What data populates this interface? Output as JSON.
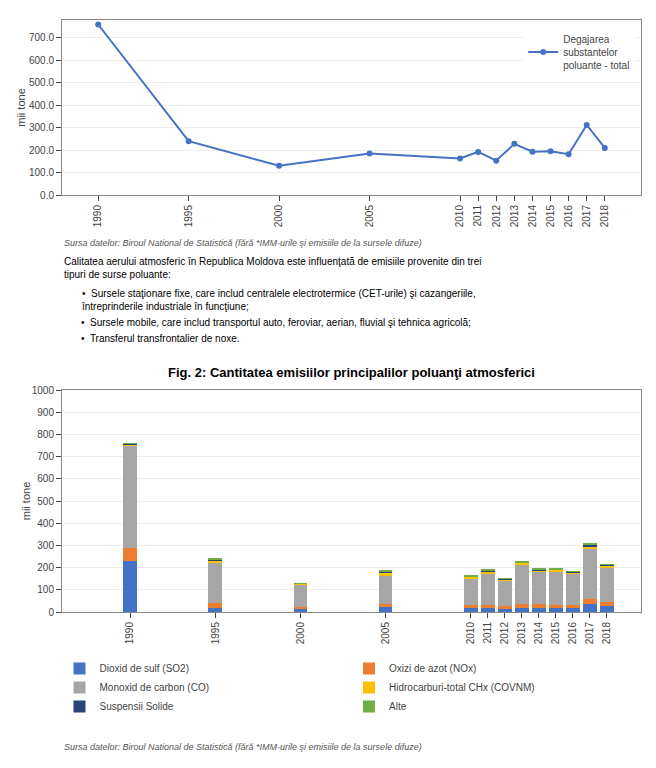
{
  "chart_data": [
    {
      "type": "line",
      "x": [
        1990,
        1995,
        2000,
        2005,
        2010,
        2011,
        2012,
        2013,
        2014,
        2015,
        2016,
        2017,
        2018
      ],
      "series": [
        {
          "name": "Degajarea\nsubstantelor\npoluante - total",
          "color": "#4472C4",
          "marker": "circle",
          "line_style": "solid",
          "values": [
            760,
            240,
            130,
            185,
            163,
            192,
            153,
            228,
            193,
            195,
            182,
            312,
            210
          ]
        }
      ],
      "ylabel": "mii tone",
      "xlim": [
        1988,
        2020
      ],
      "xticks": [
        1990,
        1995,
        2000,
        2005,
        2010,
        2011,
        2012,
        2013,
        2014,
        2015,
        2016,
        2017,
        2018
      ],
      "ylim": [
        0,
        780
      ],
      "yticks": [
        {
          "value": 0,
          "label": "0.0"
        },
        {
          "value": 100,
          "label": "100.0"
        },
        {
          "value": 200,
          "label": "200.0"
        },
        {
          "value": 300,
          "label": "300.0"
        },
        {
          "value": 400,
          "label": "400.0"
        },
        {
          "value": 500,
          "label": "500.0"
        },
        {
          "value": 600,
          "label": "600.0"
        },
        {
          "value": 700,
          "label": "700.0"
        }
      ],
      "grid": "y",
      "legend": "upper right",
      "annotations": [
        "Sursa datelor: Biroul National de Statistică (fără *IMM-urile şi emisiile de la sursele difuze)",
        "Calitatea aerului atmosferic în Republica Moldova este influenţată de emisiile provenite din trei tipuri de surse poluante:",
        "•  Sursele staţionare fixe, care includ centralele electrotermice (CET-urile) şi cazangeriile, întreprinderile industriale în funcţiune;",
        "•  Sursele mobile, care includ transportul auto, feroviar, aerian, fluvial şi tehnica agricolă;",
        "•  Transferul transfrontalier de noxe."
      ]
    },
    {
      "type": "bar",
      "stacked": true,
      "title": "Fig. 2: Cantitatea emisiilor principalilor poluanţi atmosferici",
      "x": [
        1990,
        1995,
        2000,
        2005,
        2010,
        2011,
        2012,
        2013,
        2014,
        2015,
        2016,
        2017,
        2018
      ],
      "series": [
        {
          "name": "Dioxid de sulf (SO2)",
          "color": "#4472C4",
          "values": [
            230,
            20,
            15,
            22,
            18,
            18,
            15,
            20,
            18,
            17,
            17,
            35,
            28
          ]
        },
        {
          "name": "Oxizi de azot (NOx)",
          "color": "#ED7D31",
          "values": [
            60,
            20,
            8,
            12,
            12,
            12,
            10,
            18,
            16,
            16,
            14,
            22,
            18
          ]
        },
        {
          "name": "Monoxid de carbon (CO)",
          "color": "#A6A6A6",
          "values": [
            460,
            185,
            100,
            130,
            118,
            140,
            115,
            175,
            145,
            148,
            138,
            225,
            155
          ]
        },
        {
          "name": "Hidrocarburi-total CHx (COVNM)",
          "color": "#FFC000",
          "values": [
            5,
            8,
            4,
            12,
            10,
            12,
            8,
            8,
            10,
            9,
            9,
            15,
            8
          ]
        },
        {
          "name": "Suspensii Solide",
          "color": "#264478",
          "values": [
            2,
            5,
            2,
            5,
            3,
            5,
            3,
            3,
            3,
            3,
            3,
            5,
            3
          ]
        },
        {
          "name": "Alte",
          "color": "#70AD47",
          "values": [
            3,
            3,
            1,
            4,
            2,
            3,
            2,
            6,
            3,
            3,
            2,
            5,
            3
          ]
        }
      ],
      "ylabel": "mii tone",
      "xlim": [
        1986,
        2020
      ],
      "xticks": [
        1990,
        1995,
        2000,
        2005,
        2010,
        2011,
        2012,
        2013,
        2014,
        2015,
        2016,
        2017,
        2018
      ],
      "ylim": [
        0,
        1000
      ],
      "yticks": [
        0,
        100,
        200,
        300,
        400,
        500,
        600,
        700,
        800,
        900,
        1000
      ],
      "grid": "y",
      "legend": "below",
      "annotations": [
        "Sursa datelor: Biroul National de Statistică (fără *IMM-urile şi emisiile de la sursele difuze)"
      ]
    }
  ]
}
